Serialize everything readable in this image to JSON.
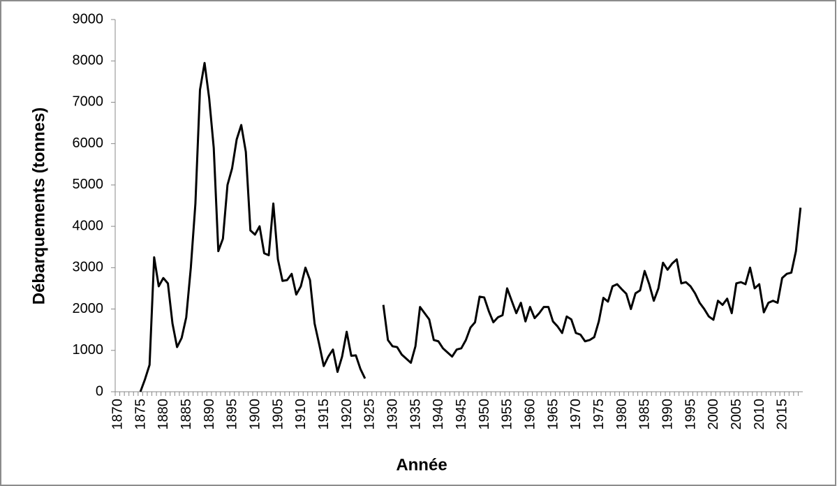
{
  "chart_data": {
    "type": "line",
    "xlabel": "Année",
    "ylabel": "Débarquements (tonnes)",
    "x": [
      1870,
      1871,
      1872,
      1873,
      1874,
      1875,
      1876,
      1877,
      1878,
      1879,
      1880,
      1881,
      1882,
      1883,
      1884,
      1885,
      1886,
      1887,
      1888,
      1889,
      1890,
      1891,
      1892,
      1893,
      1894,
      1895,
      1896,
      1897,
      1898,
      1899,
      1900,
      1901,
      1902,
      1903,
      1904,
      1905,
      1906,
      1907,
      1908,
      1909,
      1910,
      1911,
      1912,
      1913,
      1914,
      1915,
      1916,
      1917,
      1918,
      1919,
      1920,
      1921,
      1922,
      1923,
      1924,
      1925,
      1926,
      1927,
      1928,
      1929,
      1930,
      1931,
      1932,
      1933,
      1934,
      1935,
      1936,
      1937,
      1938,
      1939,
      1940,
      1941,
      1942,
      1943,
      1944,
      1945,
      1946,
      1947,
      1948,
      1949,
      1950,
      1951,
      1952,
      1953,
      1954,
      1955,
      1956,
      1957,
      1958,
      1959,
      1960,
      1961,
      1962,
      1963,
      1964,
      1965,
      1966,
      1967,
      1968,
      1969,
      1970,
      1971,
      1972,
      1973,
      1974,
      1975,
      1976,
      1977,
      1978,
      1979,
      1980,
      1981,
      1982,
      1983,
      1984,
      1985,
      1986,
      1987,
      1988,
      1989,
      1990,
      1991,
      1992,
      1993,
      1994,
      1995,
      1996,
      1997,
      1998,
      1999,
      2000,
      2001,
      2002,
      2003,
      2004,
      2005,
      2006,
      2007,
      2008,
      2009,
      2010,
      2011,
      2012,
      2013,
      2014,
      2015,
      2016,
      2017,
      2018,
      2019
    ],
    "series": [
      {
        "color": "#000000",
        "values": [
          null,
          null,
          null,
          null,
          null,
          0,
          300,
          650,
          3250,
          2550,
          2750,
          2620,
          1650,
          1080,
          1300,
          1800,
          3000,
          4550,
          7300,
          7950,
          7100,
          5900,
          3400,
          3700,
          5000,
          5400,
          6100,
          6450,
          5800,
          3900,
          3800,
          4000,
          3350,
          3300,
          4550,
          3200,
          2680,
          2700,
          2850,
          2350,
          2550,
          3000,
          2700,
          1650,
          1150,
          620,
          850,
          1020,
          480,
          850,
          1450,
          870,
          880,
          550,
          320,
          null,
          null,
          null,
          2100,
          1250,
          1100,
          1080,
          900,
          800,
          700,
          1100,
          2050,
          1900,
          1750,
          1250,
          1220,
          1050,
          950,
          850,
          1020,
          1050,
          1250,
          1550,
          1680,
          2300,
          2280,
          1950,
          1680,
          1800,
          1850,
          2500,
          2200,
          1900,
          2150,
          1700,
          2050,
          1780,
          1900,
          2050,
          2050,
          1700,
          1580,
          1420,
          1820,
          1750,
          1420,
          1380,
          1220,
          1250,
          1320,
          1700,
          2270,
          2180,
          2550,
          2600,
          2480,
          2370,
          2000,
          2380,
          2450,
          2920,
          2600,
          2200,
          2500,
          3120,
          2950,
          3100,
          3200,
          2620,
          2650,
          2550,
          2380,
          2150,
          2000,
          1820,
          1740,
          2200,
          2100,
          2250,
          1900,
          2620,
          2650,
          2600,
          3000,
          2500,
          2600,
          1920,
          2150,
          2200,
          2150,
          2750,
          2850,
          2880,
          3400,
          4450
        ]
      }
    ],
    "xlim": [
      1869.5,
      2019.5
    ],
    "xticks": [
      1870,
      1875,
      1880,
      1885,
      1890,
      1895,
      1900,
      1905,
      1910,
      1915,
      1920,
      1925,
      1930,
      1935,
      1940,
      1945,
      1950,
      1955,
      1960,
      1965,
      1970,
      1975,
      1980,
      1985,
      1990,
      1995,
      2000,
      2005,
      2010,
      2015
    ],
    "ylim": [
      0,
      9000
    ],
    "yticks": [
      0,
      1000,
      2000,
      3000,
      4000,
      5000,
      6000,
      7000,
      8000,
      9000
    ]
  }
}
